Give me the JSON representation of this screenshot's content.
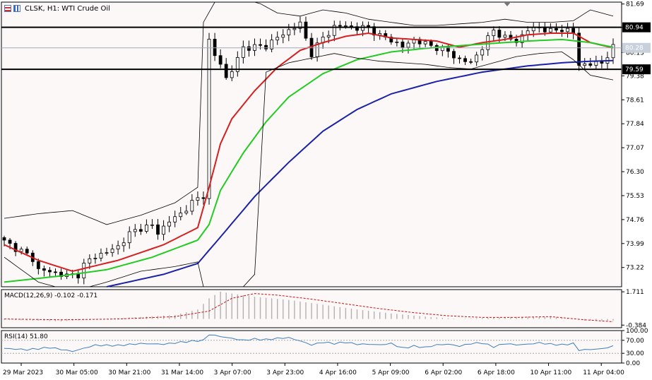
{
  "window": {
    "symbol": "CLSK",
    "timeframe": "H1",
    "title": "CLSK, H1:  WTI Crude Oil"
  },
  "colors": {
    "background": "#fdf8f8",
    "candle": "#000000",
    "bollinger": "#000000",
    "ma_fast": "#d42020",
    "ma_mid": "#22cc22",
    "ma_slow": "#1a22a8",
    "macd_hist": "#b0b0b0",
    "macd_signal": "#cc1111",
    "rsi": "#3a7fc0",
    "level_line": "#000000",
    "current_line": "#a0aab8",
    "current_badge": "#c8d0dc"
  },
  "levels": [
    {
      "value": "80.94",
      "price": 80.94
    },
    {
      "value": "79.59",
      "price": 79.59
    }
  ],
  "current_price": {
    "value": "80.28",
    "price": 80.28
  },
  "chart_data": [
    {
      "type": "candlestick",
      "title": "CLSK, H1:  WTI Crude Oil",
      "ylim": [
        72.6,
        81.75
      ],
      "y_ticks": [
        "81.69",
        "80.94",
        "80.13",
        "79.38",
        "78.61",
        "77.84",
        "77.07",
        "76.30",
        "75.53",
        "74.76",
        "73.99",
        "73.22"
      ],
      "x_ticks": [
        "29 Mar 2023",
        "30 Mar 05:00",
        "30 Mar 21:00",
        "31 Mar 14:00",
        "3 Apr 07:00",
        "3 Apr 23:00",
        "4 Apr 16:00",
        "5 Apr 09:00",
        "6 Apr 02:00",
        "6 Apr 18:00",
        "10 Apr 11:00",
        "11 Apr 04:00"
      ],
      "price_path": [
        [
          0,
          74.05
        ],
        [
          3,
          73.75
        ],
        [
          5,
          73.5
        ],
        [
          6,
          73.15
        ],
        [
          9,
          73.05
        ],
        [
          11,
          72.95
        ],
        [
          13,
          73.0
        ],
        [
          14,
          73.3
        ],
        [
          16,
          73.6
        ],
        [
          18,
          73.7
        ],
        [
          20,
          73.9
        ],
        [
          22,
          74.3
        ],
        [
          24,
          74.5
        ],
        [
          26,
          74.55
        ],
        [
          27,
          74.35
        ],
        [
          29,
          74.7
        ],
        [
          31,
          74.95
        ],
        [
          33,
          75.3
        ],
        [
          35,
          75.55
        ],
        [
          36,
          80.5
        ],
        [
          37,
          80.0
        ],
        [
          38,
          79.8
        ],
        [
          39,
          79.3
        ],
        [
          40,
          79.55
        ],
        [
          42,
          80.3
        ],
        [
          44,
          80.3
        ],
        [
          46,
          80.35
        ],
        [
          48,
          80.6
        ],
        [
          50,
          80.85
        ],
        [
          52,
          81.05
        ],
        [
          54,
          80.1
        ],
        [
          56,
          80.6
        ],
        [
          58,
          80.95
        ],
        [
          60,
          81.0
        ],
        [
          62,
          80.9
        ],
        [
          64,
          80.95
        ],
        [
          66,
          80.65
        ],
        [
          68,
          80.55
        ],
        [
          70,
          80.3
        ],
        [
          72,
          80.55
        ],
        [
          74,
          80.4
        ],
        [
          76,
          80.3
        ],
        [
          78,
          80.15
        ],
        [
          80,
          79.9
        ],
        [
          82,
          79.8
        ],
        [
          84,
          80.3
        ],
        [
          86,
          80.85
        ],
        [
          88,
          80.6
        ],
        [
          90,
          80.5
        ],
        [
          92,
          80.85
        ],
        [
          94,
          80.95
        ],
        [
          96,
          80.8
        ],
        [
          98,
          80.9
        ],
        [
          100,
          80.75
        ],
        [
          101,
          79.75
        ],
        [
          103,
          79.75
        ],
        [
          105,
          79.8
        ],
        [
          106,
          80.05
        ],
        [
          107,
          80.28
        ]
      ],
      "series": [
        {
          "name": "MA fast",
          "points": [
            [
              0,
              73.95
            ],
            [
              6,
              73.45
            ],
            [
              12,
              73.1
            ],
            [
              20,
              73.45
            ],
            [
              28,
              73.95
            ],
            [
              34,
              74.5
            ],
            [
              36,
              75.8
            ],
            [
              38,
              77.2
            ],
            [
              40,
              78.0
            ],
            [
              44,
              78.9
            ],
            [
              48,
              79.65
            ],
            [
              52,
              80.2
            ],
            [
              56,
              80.45
            ],
            [
              60,
              80.65
            ],
            [
              64,
              80.75
            ],
            [
              68,
              80.6
            ],
            [
              72,
              80.55
            ],
            [
              76,
              80.5
            ],
            [
              80,
              80.3
            ],
            [
              84,
              80.45
            ],
            [
              88,
              80.55
            ],
            [
              92,
              80.7
            ],
            [
              96,
              80.75
            ],
            [
              100,
              80.75
            ],
            [
              103,
              80.45
            ],
            [
              107,
              80.28
            ]
          ]
        },
        {
          "name": "MA mid",
          "points": [
            [
              0,
              72.75
            ],
            [
              10,
              72.95
            ],
            [
              18,
              73.15
            ],
            [
              26,
              73.55
            ],
            [
              34,
              74.1
            ],
            [
              36,
              74.6
            ],
            [
              38,
              75.7
            ],
            [
              42,
              76.9
            ],
            [
              46,
              77.9
            ],
            [
              50,
              78.7
            ],
            [
              56,
              79.45
            ],
            [
              62,
              79.9
            ],
            [
              68,
              80.15
            ],
            [
              76,
              80.3
            ],
            [
              84,
              80.4
            ],
            [
              92,
              80.5
            ],
            [
              98,
              80.55
            ],
            [
              103,
              80.45
            ],
            [
              107,
              80.3
            ]
          ]
        },
        {
          "name": "MA slow",
          "points": [
            [
              18,
              72.6
            ],
            [
              28,
              73.0
            ],
            [
              34,
              73.35
            ],
            [
              38,
              74.2
            ],
            [
              44,
              75.5
            ],
            [
              50,
              76.6
            ],
            [
              56,
              77.6
            ],
            [
              62,
              78.3
            ],
            [
              68,
              78.8
            ],
            [
              76,
              79.2
            ],
            [
              84,
              79.5
            ],
            [
              92,
              79.7
            ],
            [
              98,
              79.8
            ],
            [
              103,
              79.85
            ],
            [
              107,
              79.87
            ]
          ]
        },
        {
          "name": "BB upper",
          "points": [
            [
              0,
              74.8
            ],
            [
              6,
              74.95
            ],
            [
              12,
              75.05
            ],
            [
              18,
              74.6
            ],
            [
              24,
              74.9
            ],
            [
              30,
              75.3
            ],
            [
              34,
              75.8
            ],
            [
              35,
              81.1
            ],
            [
              37,
              81.75
            ],
            [
              40,
              81.75
            ],
            [
              44,
              81.8
            ],
            [
              48,
              81.4
            ],
            [
              52,
              81.3
            ],
            [
              56,
              81.5
            ],
            [
              60,
              81.4
            ],
            [
              64,
              81.2
            ],
            [
              68,
              81.1
            ],
            [
              72,
              81.0
            ],
            [
              76,
              81.0
            ],
            [
              80,
              81.05
            ],
            [
              84,
              81.1
            ],
            [
              88,
              81.2
            ],
            [
              92,
              81.1
            ],
            [
              96,
              81.1
            ],
            [
              100,
              81.15
            ],
            [
              103,
              81.5
            ],
            [
              107,
              81.3
            ]
          ]
        },
        {
          "name": "BB lower",
          "points": [
            [
              0,
              73.55
            ],
            [
              6,
              72.75
            ],
            [
              12,
              72.45
            ],
            [
              18,
              72.75
            ],
            [
              24,
              73.1
            ],
            [
              30,
              73.25
            ],
            [
              34,
              73.4
            ],
            [
              35,
              72.6
            ],
            [
              42,
              72.6
            ],
            [
              44,
              73.0
            ],
            [
              46,
              79.5
            ],
            [
              50,
              79.8
            ],
            [
              54,
              79.95
            ],
            [
              58,
              80.1
            ],
            [
              62,
              79.95
            ],
            [
              66,
              79.85
            ],
            [
              70,
              79.8
            ],
            [
              74,
              79.75
            ],
            [
              78,
              79.65
            ],
            [
              82,
              79.6
            ],
            [
              86,
              79.8
            ],
            [
              90,
              80.0
            ],
            [
              94,
              80.1
            ],
            [
              98,
              80.15
            ],
            [
              100,
              79.9
            ],
            [
              103,
              79.4
            ],
            [
              107,
              79.25
            ]
          ]
        }
      ]
    },
    {
      "type": "histogram",
      "title": "MACD(12,26,9) -0.102 -0.171",
      "ylim": [
        -0.55,
        1.85
      ],
      "y_ticks": [
        "1.711",
        "-0.384"
      ],
      "histogram_path": [
        [
          0,
          -0.05
        ],
        [
          10,
          -0.15
        ],
        [
          20,
          0.05
        ],
        [
          30,
          0.25
        ],
        [
          34,
          0.6
        ],
        [
          36,
          1.3
        ],
        [
          38,
          1.72
        ],
        [
          40,
          1.6
        ],
        [
          44,
          1.4
        ],
        [
          50,
          1.2
        ],
        [
          56,
          0.9
        ],
        [
          62,
          0.6
        ],
        [
          68,
          0.35
        ],
        [
          74,
          0.15
        ],
        [
          80,
          0.0
        ],
        [
          86,
          0.1
        ],
        [
          92,
          0.15
        ],
        [
          98,
          0.1
        ],
        [
          102,
          -0.1
        ],
        [
          107,
          -0.1
        ]
      ],
      "series": [
        {
          "name": "Signal",
          "points": [
            [
              0,
              0.0
            ],
            [
              10,
              -0.05
            ],
            [
              20,
              0.0
            ],
            [
              30,
              0.15
            ],
            [
              36,
              0.5
            ],
            [
              40,
              1.3
            ],
            [
              44,
              1.6
            ],
            [
              48,
              1.5
            ],
            [
              54,
              1.25
            ],
            [
              60,
              0.95
            ],
            [
              66,
              0.65
            ],
            [
              72,
              0.4
            ],
            [
              78,
              0.2
            ],
            [
              84,
              0.1
            ],
            [
              90,
              0.1
            ],
            [
              96,
              0.15
            ],
            [
              102,
              -0.05
            ],
            [
              107,
              -0.171
            ]
          ]
        }
      ]
    },
    {
      "type": "line",
      "title": "RSI(14) 51.80",
      "ylim": [
        0,
        100
      ],
      "y_ticks": [
        "100.00",
        "70.00",
        "30.00",
        "0.00"
      ],
      "series": [
        {
          "name": "RSI(14)",
          "points": [
            [
              0,
              45
            ],
            [
              4,
              41
            ],
            [
              8,
              48
            ],
            [
              12,
              36
            ],
            [
              16,
              55
            ],
            [
              20,
              54
            ],
            [
              24,
              60
            ],
            [
              28,
              58
            ],
            [
              32,
              66
            ],
            [
              35,
              70
            ],
            [
              36,
              88
            ],
            [
              38,
              82
            ],
            [
              40,
              76
            ],
            [
              42,
              70
            ],
            [
              44,
              74
            ],
            [
              46,
              72
            ],
            [
              48,
              76
            ],
            [
              50,
              78
            ],
            [
              52,
              68
            ],
            [
              54,
              56
            ],
            [
              56,
              64
            ],
            [
              58,
              60
            ],
            [
              60,
              64
            ],
            [
              62,
              58
            ],
            [
              64,
              58
            ],
            [
              66,
              56
            ],
            [
              68,
              60
            ],
            [
              70,
              46
            ],
            [
              72,
              52
            ],
            [
              74,
              48
            ],
            [
              76,
              56
            ],
            [
              78,
              58
            ],
            [
              80,
              52
            ],
            [
              82,
              60
            ],
            [
              84,
              62
            ],
            [
              86,
              50
            ],
            [
              88,
              60
            ],
            [
              90,
              56
            ],
            [
              92,
              58
            ],
            [
              94,
              62
            ],
            [
              96,
              58
            ],
            [
              98,
              56
            ],
            [
              100,
              60
            ],
            [
              101,
              40
            ],
            [
              103,
              42
            ],
            [
              105,
              44
            ],
            [
              107,
              51.8
            ]
          ]
        }
      ]
    }
  ]
}
